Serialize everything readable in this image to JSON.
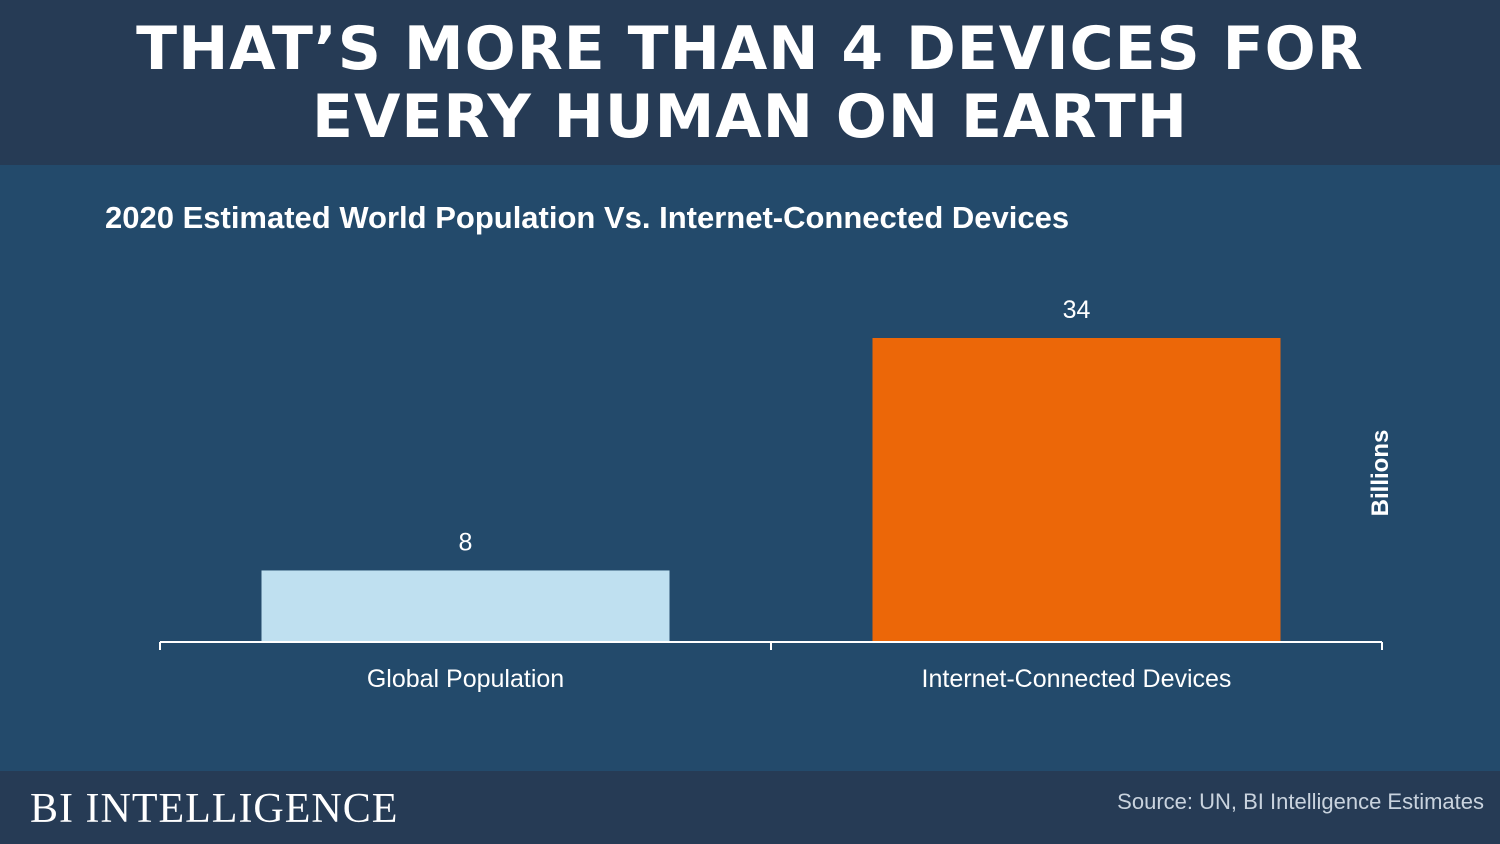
{
  "header": {
    "title": "THAT’S MORE THAN 4 DEVICES FOR EVERY HUMAN ON EARTH"
  },
  "chart_data": {
    "type": "bar",
    "title": "2020  Estimated World Population Vs. Internet-Connected Devices",
    "categories": [
      "Global Population",
      "Internet-Connected Devices"
    ],
    "values": [
      8,
      34
    ],
    "colors": [
      "#bfe0f0",
      "#ec6708"
    ],
    "ylabel": "Billions",
    "ylim": [
      0,
      34
    ],
    "grid": false,
    "legend": "none"
  },
  "footer": {
    "brand": "BI INTELLIGENCE",
    "source": "Source: UN, BI Intelligence Estimates"
  }
}
